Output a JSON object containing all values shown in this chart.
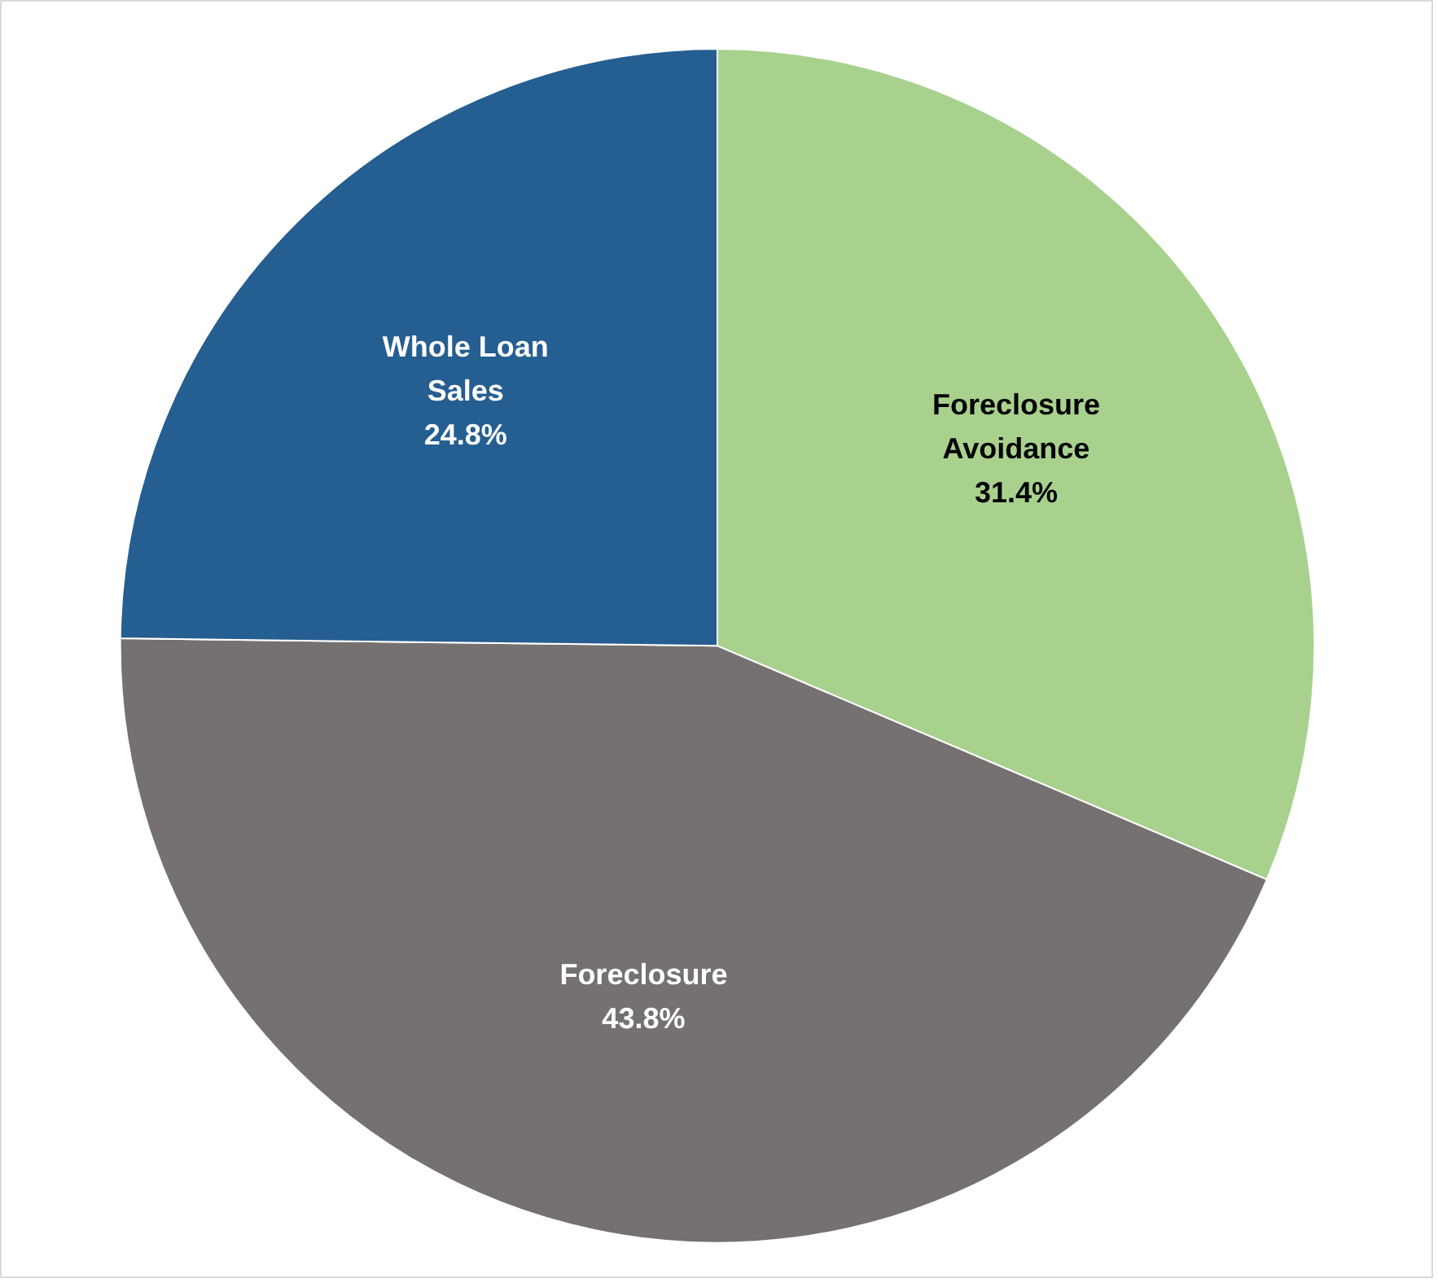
{
  "chart_data": {
    "type": "pie",
    "categories": [
      "Foreclosure Avoidance",
      "Foreclosure",
      "Whole Loan Sales"
    ],
    "values": [
      31.4,
      43.8,
      24.8
    ],
    "colors": [
      "#a9d18e",
      "#767171",
      "#255e91"
    ],
    "value_labels": [
      "31.4%",
      "43.8%",
      "24.8%"
    ]
  }
}
